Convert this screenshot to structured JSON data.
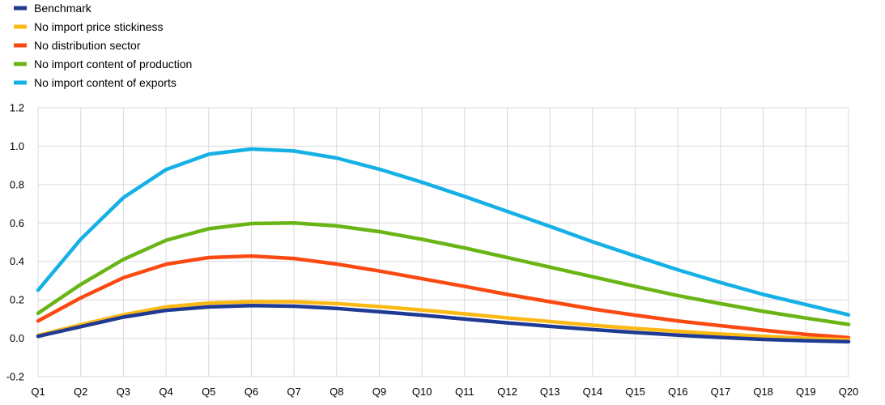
{
  "chart_data": {
    "type": "line",
    "title": "",
    "xlabel": "",
    "ylabel": "",
    "categories": [
      "Q1",
      "Q2",
      "Q3",
      "Q4",
      "Q5",
      "Q6",
      "Q7",
      "Q8",
      "Q9",
      "Q10",
      "Q11",
      "Q12",
      "Q13",
      "Q14",
      "Q15",
      "Q16",
      "Q17",
      "Q18",
      "Q19",
      "Q20"
    ],
    "ylim": [
      -0.2,
      1.2
    ],
    "yticks": [
      "-0.2",
      "0.0",
      "0.2",
      "0.4",
      "0.6",
      "0.8",
      "1.0",
      "1.2"
    ],
    "grid": true,
    "legend_position": "top-left",
    "series": [
      {
        "name": "Benchmark",
        "color": "#1f3a93",
        "values": [
          0.01,
          0.06,
          0.11,
          0.145,
          0.163,
          0.17,
          0.167,
          0.155,
          0.138,
          0.12,
          0.1,
          0.08,
          0.062,
          0.045,
          0.03,
          0.016,
          0.004,
          -0.006,
          -0.013,
          -0.018
        ]
      },
      {
        "name": "No import price stickiness",
        "color": "#fcb914",
        "values": [
          0.015,
          0.07,
          0.122,
          0.163,
          0.183,
          0.19,
          0.19,
          0.18,
          0.165,
          0.147,
          0.127,
          0.106,
          0.087,
          0.068,
          0.051,
          0.036,
          0.022,
          0.01,
          0.0,
          -0.008
        ]
      },
      {
        "name": "No distribution sector",
        "color": "#fb4a11",
        "values": [
          0.09,
          0.21,
          0.315,
          0.385,
          0.42,
          0.428,
          0.415,
          0.386,
          0.35,
          0.31,
          0.27,
          0.228,
          0.19,
          0.152,
          0.12,
          0.09,
          0.065,
          0.042,
          0.02,
          0.003
        ]
      },
      {
        "name": "No import content of production",
        "color": "#6ab516",
        "values": [
          0.13,
          0.28,
          0.41,
          0.51,
          0.57,
          0.597,
          0.6,
          0.585,
          0.555,
          0.515,
          0.47,
          0.42,
          0.37,
          0.32,
          0.27,
          0.222,
          0.18,
          0.14,
          0.105,
          0.072
        ]
      },
      {
        "name": "No import content of exports",
        "color": "#15b0e6",
        "values": [
          0.25,
          0.515,
          0.732,
          0.878,
          0.958,
          0.985,
          0.975,
          0.938,
          0.88,
          0.812,
          0.738,
          0.66,
          0.582,
          0.502,
          0.428,
          0.356,
          0.29,
          0.228,
          0.175,
          0.122
        ]
      }
    ]
  }
}
